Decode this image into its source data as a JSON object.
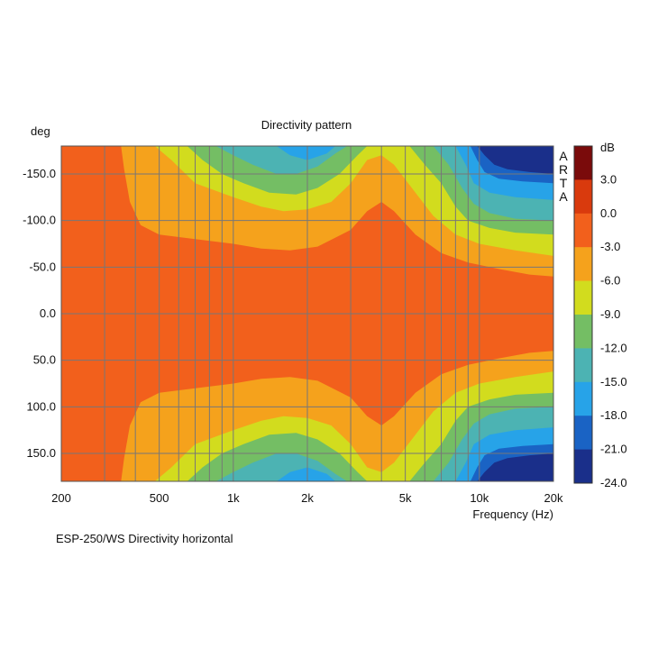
{
  "caption": "ESP-250/WS  Directivity horizontal",
  "chart_data": {
    "type": "heatmap",
    "title": "Directivity pattern",
    "xlabel": "Frequency (Hz)",
    "ylabel": "deg",
    "x_scale": "log",
    "xlim": [
      200,
      20000
    ],
    "ylim": [
      -180,
      180
    ],
    "x_ticks": [
      200,
      500,
      1000,
      2000,
      5000,
      10000,
      20000
    ],
    "x_tick_labels": [
      "200",
      "500",
      "1k",
      "2k",
      "5k",
      "10k",
      "20k"
    ],
    "y_ticks": [
      -150,
      -100,
      -50,
      0,
      50,
      100,
      150
    ],
    "y_tick_labels": [
      "-150.0",
      "-100.0",
      "-50.0",
      "0.0",
      "50.0",
      "100.0",
      "150.0"
    ],
    "grid": true,
    "watermark": "ARTA",
    "colorbar": {
      "unit": "dB",
      "labels": [
        "3.0",
        "0.0",
        "-3.0",
        "-6.0",
        "-9.0",
        "-12.0",
        "-15.0",
        "-18.0",
        "-21.0",
        "-24.0"
      ],
      "levels": [
        {
          "min": 3,
          "color": "#7a0b0b"
        },
        {
          "min": 0,
          "color": "#d93a0d"
        },
        {
          "min": -3,
          "color": "#f2601c"
        },
        {
          "min": -6,
          "color": "#f5a21c"
        },
        {
          "min": -9,
          "color": "#d2dc1e"
        },
        {
          "min": -12,
          "color": "#74be64"
        },
        {
          "min": -15,
          "color": "#4cb3b3"
        },
        {
          "min": -18,
          "color": "#27a3e8"
        },
        {
          "min": -21,
          "color": "#1a63c4"
        },
        {
          "min": -24,
          "color": "#1a2f8a"
        }
      ]
    },
    "contour_edges": [
      {
        "level": -6,
        "points": [
          [
            200,
            -180
          ],
          [
            350,
            -180
          ],
          [
            360,
            -155
          ],
          [
            380,
            -120
          ],
          [
            420,
            -95
          ],
          [
            500,
            -85
          ],
          [
            700,
            -80
          ],
          [
            1000,
            -75
          ],
          [
            1300,
            -70
          ],
          [
            1700,
            -68
          ],
          [
            2200,
            -72
          ],
          [
            3000,
            -90
          ],
          [
            3500,
            -110
          ],
          [
            4000,
            -120
          ],
          [
            4500,
            -110
          ],
          [
            5500,
            -85
          ],
          [
            7000,
            -65
          ],
          [
            9000,
            -55
          ],
          [
            12000,
            -48
          ],
          [
            16000,
            -42
          ],
          [
            20000,
            -40
          ]
        ]
      },
      {
        "level": -9,
        "points": [
          [
            200,
            -180
          ],
          [
            480,
            -180
          ],
          [
            560,
            -165
          ],
          [
            700,
            -140
          ],
          [
            1000,
            -125
          ],
          [
            1300,
            -115
          ],
          [
            1600,
            -110
          ],
          [
            2000,
            -112
          ],
          [
            2500,
            -120
          ],
          [
            3000,
            -140
          ],
          [
            3500,
            -165
          ],
          [
            4000,
            -170
          ],
          [
            4500,
            -160
          ],
          [
            5500,
            -130
          ],
          [
            6500,
            -105
          ],
          [
            8000,
            -85
          ],
          [
            10000,
            -75
          ],
          [
            14000,
            -68
          ],
          [
            20000,
            -62
          ]
        ]
      },
      {
        "level": -12,
        "points": [
          [
            200,
            -180
          ],
          [
            650,
            -180
          ],
          [
            750,
            -165
          ],
          [
            900,
            -150
          ],
          [
            1100,
            -140
          ],
          [
            1400,
            -130
          ],
          [
            1800,
            -128
          ],
          [
            2200,
            -135
          ],
          [
            2700,
            -150
          ],
          [
            3200,
            -170
          ],
          [
            3500,
            -180
          ],
          [
            5200,
            -180
          ],
          [
            6000,
            -160
          ],
          [
            7000,
            -140
          ],
          [
            8000,
            -115
          ],
          [
            9000,
            -100
          ],
          [
            11000,
            -92
          ],
          [
            14000,
            -87
          ],
          [
            20000,
            -85
          ]
        ]
      },
      {
        "level": -15,
        "points": [
          [
            200,
            -180
          ],
          [
            850,
            -180
          ],
          [
            1000,
            -170
          ],
          [
            1200,
            -160
          ],
          [
            1500,
            -150
          ],
          [
            1800,
            -150
          ],
          [
            2200,
            -158
          ],
          [
            2600,
            -172
          ],
          [
            2900,
            -180
          ],
          [
            6500,
            -180
          ],
          [
            7500,
            -160
          ],
          [
            8500,
            -135
          ],
          [
            9500,
            -118
          ],
          [
            11000,
            -108
          ],
          [
            14000,
            -102
          ],
          [
            20000,
            -100
          ]
        ]
      },
      {
        "level": -18,
        "points": [
          [
            200,
            -180
          ],
          [
            1500,
            -180
          ],
          [
            1700,
            -170
          ],
          [
            2000,
            -165
          ],
          [
            2400,
            -172
          ],
          [
            2600,
            -180
          ],
          [
            8000,
            -180
          ],
          [
            8800,
            -160
          ],
          [
            9500,
            -140
          ],
          [
            11000,
            -130
          ],
          [
            14000,
            -125
          ],
          [
            20000,
            -122
          ]
        ]
      },
      {
        "level": -21,
        "points": [
          [
            200,
            -180
          ],
          [
            9200,
            -180
          ],
          [
            9800,
            -165
          ],
          [
            10500,
            -152
          ],
          [
            12000,
            -145
          ],
          [
            15000,
            -142
          ],
          [
            20000,
            -140
          ]
        ]
      },
      {
        "level": -24,
        "points": [
          [
            200,
            -180
          ],
          [
            9800,
            -180
          ],
          [
            10500,
            -170
          ],
          [
            11500,
            -160
          ],
          [
            13000,
            -155
          ],
          [
            16000,
            -152
          ],
          [
            20000,
            -150
          ]
        ]
      }
    ]
  }
}
